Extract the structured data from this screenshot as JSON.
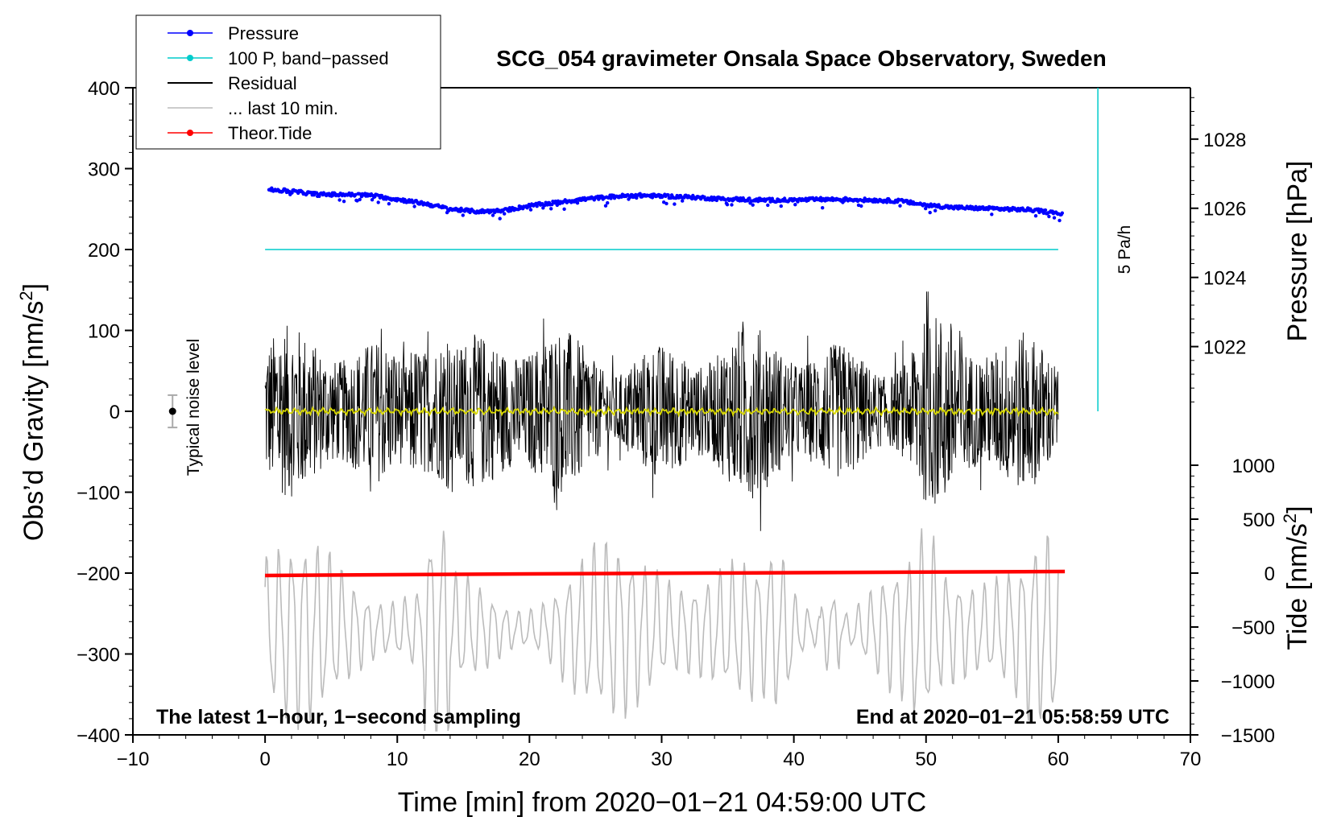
{
  "chart_data": {
    "type": "line",
    "title": "SCG_054 gravimeter Onsala Space Observatory, Sweden",
    "xlabel": "Time [min] from 2020−01−21 04:59:00 UTC",
    "ylabel_left": "Obs’d Gravity [nm/s²]",
    "ylabel_left_main": "Obs’d Gravity [nm/s",
    "ylabel_left_sup": "2",
    "ylabel_left_close": "]",
    "ylabel_right_pressure": "Pressure [hPa]",
    "ylabel_right_tide": "Tide [nm/s²]",
    "ylabel_right_tide_main": "Tide [nm/s",
    "ylabel_right_tide_sup": "2",
    "ylabel_right_tide_close": "]",
    "xlim": [
      -10,
      70
    ],
    "ylim_left": [
      -400,
      400
    ],
    "xticks": [
      "−10",
      "0",
      "10",
      "20",
      "30",
      "40",
      "50",
      "60",
      "70"
    ],
    "xtick_values": [
      -10,
      0,
      10,
      20,
      30,
      40,
      50,
      60,
      70
    ],
    "yticks_left": [
      "400",
      "300",
      "200",
      "100",
      "0",
      "−100",
      "−200",
      "−300",
      "−400"
    ],
    "ytick_left_values": [
      400,
      300,
      200,
      100,
      0,
      -100,
      -200,
      -300,
      -400
    ],
    "pressure_axis": {
      "ticks": [
        "1028",
        "1026",
        "1024",
        "1022"
      ],
      "tick_values": [
        1028,
        1026,
        1024,
        1022
      ],
      "map": {
        "hpa_a": 1026,
        "gravity_a": 251,
        "hpa_b": 1022,
        "gravity_b": 80
      }
    },
    "tide_axis": {
      "ticks": [
        "1000",
        "500",
        "0",
        "−500",
        "−1000",
        "−1500"
      ],
      "tick_values": [
        1000,
        500,
        0,
        -500,
        -1000,
        -1500
      ],
      "map": {
        "tide_a": 0,
        "gravity_a": -200,
        "tide_b": -1500,
        "gravity_b": -400
      }
    },
    "legend": {
      "position": "top-left",
      "entries": [
        {
          "label": "Pressure",
          "color": "#0000ff",
          "marker": true
        },
        {
          "label": "100 P, band−passed",
          "color": "#00cccc",
          "marker": true
        },
        {
          "label": "Residual",
          "color": "#000000",
          "marker": false
        },
        {
          "label": "... last 10 min.",
          "color": "#bbbbbb",
          "marker": false
        },
        {
          "label": "Theor.Tide",
          "color": "#ff0000",
          "marker": true
        }
      ]
    },
    "series": [
      {
        "name": "Pressure",
        "color": "#0000ff",
        "style": "points",
        "y_units": "gravity-axis",
        "x": [
          0.3,
          2,
          4,
          6,
          8,
          10,
          12,
          14,
          16,
          18,
          20,
          22,
          24,
          26,
          28,
          30,
          32,
          34,
          36,
          38,
          40,
          42,
          44,
          46,
          48,
          50,
          52,
          54,
          56,
          58,
          60.3
        ],
        "y": [
          274,
          272,
          268,
          268,
          267,
          262,
          257,
          250,
          247,
          248,
          254,
          258,
          262,
          265,
          267,
          266,
          265,
          263,
          262,
          261,
          261,
          262,
          262,
          261,
          260,
          255,
          252,
          251,
          250,
          249,
          244
        ]
      },
      {
        "name": "100 P, band-passed",
        "color": "#00cccc",
        "style": "line",
        "y_units": "gravity-axis",
        "x": [
          0,
          60
        ],
        "y": [
          200,
          200
        ]
      },
      {
        "name": "Residual",
        "color": "#000000",
        "style": "line",
        "x_range": [
          0,
          60
        ],
        "amplitude": 150,
        "envelope_max_y": 148,
        "envelope_min_y": -148
      },
      {
        "name": "Band-passed residual",
        "color": "#d8d800",
        "style": "line",
        "x_range": [
          0,
          60
        ],
        "amplitude": 10
      },
      {
        "name": "... last 10 min.",
        "color": "#bbbbbb",
        "style": "line",
        "x_range": [
          0,
          60
        ],
        "center": -270,
        "min_y": -395,
        "max_y": -115
      },
      {
        "name": "Theor.Tide",
        "color": "#ff0000",
        "style": "line",
        "y_units": "gravity-axis",
        "x": [
          0,
          20,
          40,
          60.5
        ],
        "y": [
          -203,
          -201,
          -199.5,
          -198
        ]
      }
    ],
    "noise_indicator": {
      "label": "Typical noise level",
      "x": -7,
      "y": 0,
      "half_range": 20
    },
    "pressure_rate_bar": {
      "label": "5 Pa/h",
      "x": 63,
      "y_top": 400,
      "y_bottom": 0,
      "color": "#00cccc"
    },
    "annotation_left": "The latest 1−hour, 1−second sampling",
    "annotation_right": "End at 2020−01−21 05:58:59 UTC"
  }
}
